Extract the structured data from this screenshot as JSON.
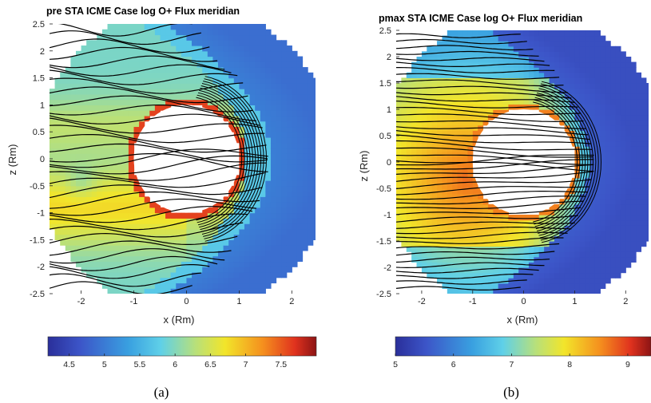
{
  "chart_data": [
    {
      "type": "heatmap",
      "panel": "(a)",
      "title": "pre STA ICME Case log O+ Flux meridian",
      "xlabel": "x (Rm)",
      "ylabel": "z (Rm)",
      "xlim": [
        -2.6,
        2.45
      ],
      "ylim": [
        -2.5,
        2.5
      ],
      "xticks": [
        -2,
        -1,
        0,
        1,
        2
      ],
      "yticks": [
        2.5,
        2,
        1.5,
        1,
        0.5,
        0,
        -0.5,
        -1,
        -1.5,
        -2,
        -2.5
      ],
      "xtick_labels": [
        "-2",
        "-1",
        "0",
        "1",
        "2"
      ],
      "ytick_labels": [
        "2.5",
        "2",
        "1.5",
        "1",
        "0.5",
        "0",
        "-0.5",
        "-1",
        "-1.5",
        "-2",
        "-2.5"
      ],
      "colorbar": {
        "range": [
          4.2,
          8.0
        ],
        "ticks": [
          4.5,
          5,
          5.5,
          6,
          6.5,
          7,
          7.5
        ],
        "tick_labels": [
          "4.5",
          "5",
          "5.5",
          "6",
          "6.5",
          "7",
          "7.5"
        ]
      },
      "domain_radius": 2.85,
      "body_radius": 1.0,
      "bow_shock_standoff": 1.35,
      "grid": false
    },
    {
      "type": "heatmap",
      "panel": "(b)",
      "title": "pmax STA ICME Case log O+ Flux meridian",
      "xlabel": "x (Rm)",
      "ylabel": "z (Rm)",
      "xlim": [
        -2.5,
        2.45
      ],
      "ylim": [
        -2.5,
        2.5
      ],
      "xticks": [
        -2,
        -1,
        0,
        1,
        2
      ],
      "yticks": [
        2.5,
        2,
        1.5,
        1,
        0.5,
        0,
        -0.5,
        -1,
        -1.5,
        -2,
        -2.5
      ],
      "xtick_labels": [
        "-2",
        "-1",
        "0",
        "1",
        "2"
      ],
      "ytick_labels": [
        "2.5",
        "2",
        "1.5",
        "1",
        "0.5",
        "0",
        "-0.5",
        "-1",
        "-1.5",
        "-2",
        "-2.5"
      ],
      "colorbar": {
        "range": [
          5.0,
          9.4
        ],
        "ticks": [
          5,
          6,
          7,
          8,
          9
        ],
        "tick_labels": [
          "5",
          "6",
          "7",
          "8",
          "9"
        ]
      },
      "domain_radius": 2.85,
      "body_radius": 1.0,
      "bow_shock_standoff": 1.18,
      "grid": false
    }
  ],
  "captions": [
    "(a)",
    "(b)"
  ]
}
